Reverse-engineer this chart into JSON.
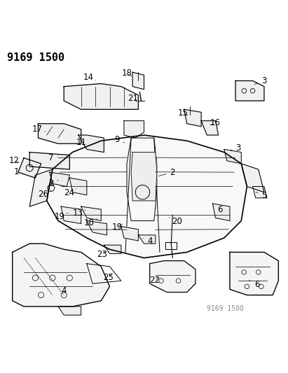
{
  "title_label": "9169 1500",
  "watermark": "9169 1500",
  "bg_color": "#ffffff",
  "line_color": "#000000",
  "label_color": "#000000",
  "title_fontsize": 11,
  "label_fontsize": 8.5,
  "watermark_fontsize": 7,
  "fig_width": 4.11,
  "fig_height": 5.33,
  "dpi": 100
}
